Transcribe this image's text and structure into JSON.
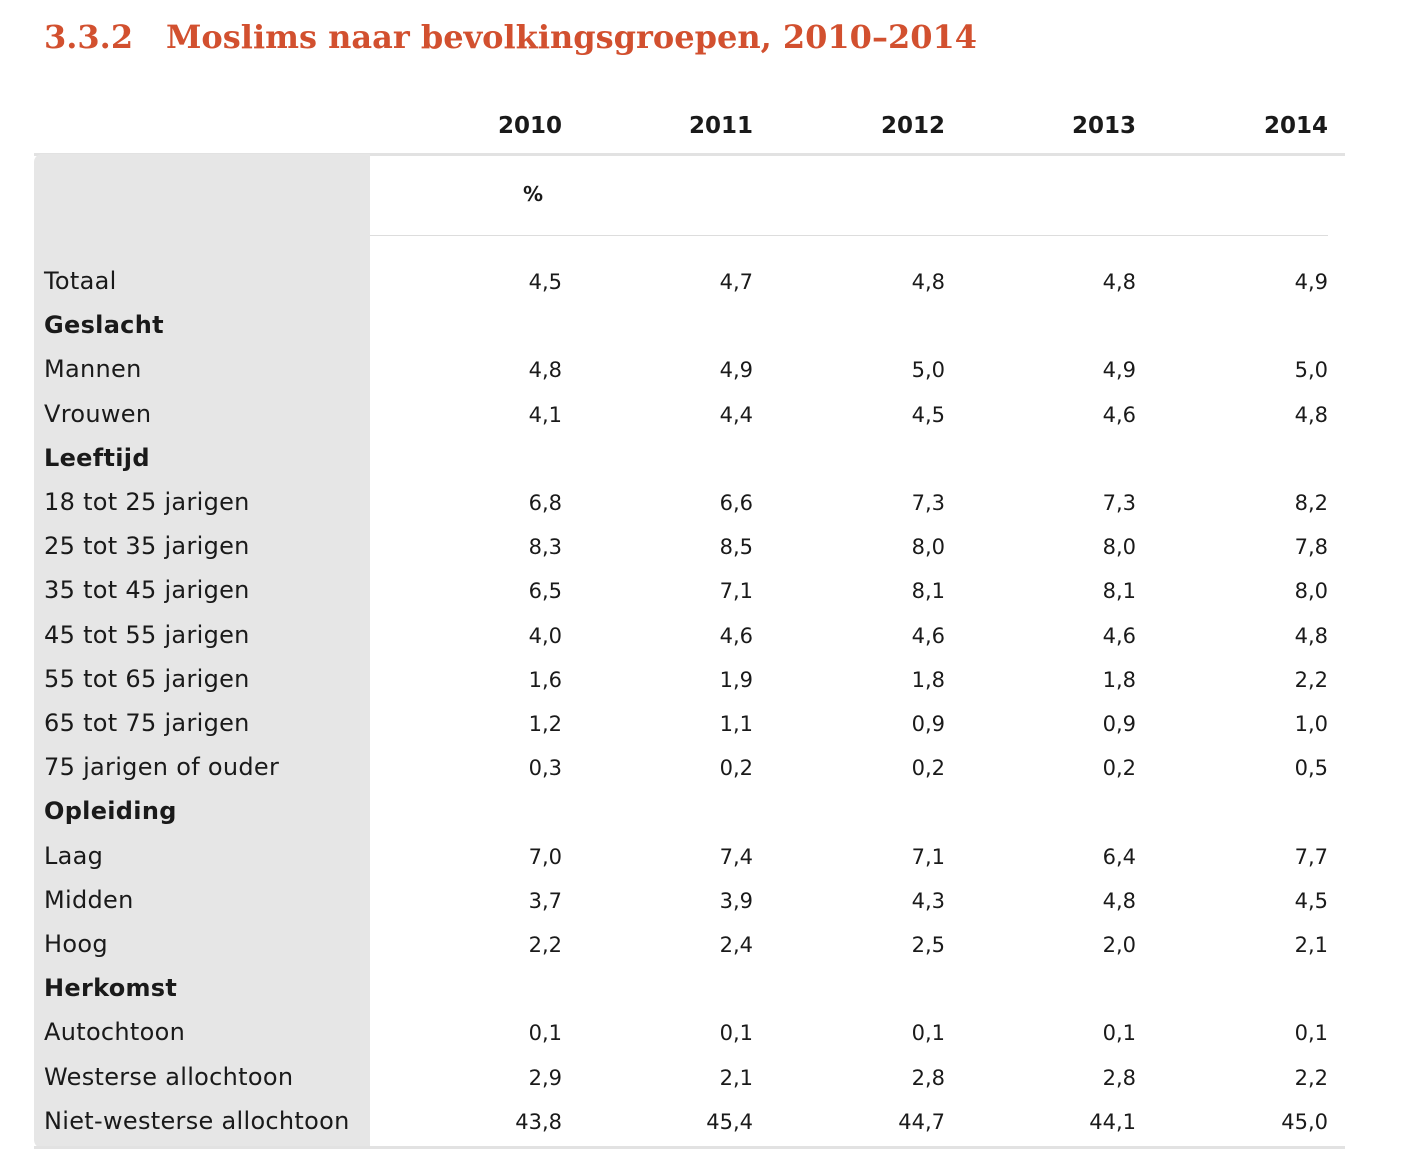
{
  "title": {
    "number": "3.3.2",
    "text": "Moslims naar bevolkingsgroepen, 2010–2014"
  },
  "columns": [
    "2010",
    "2011",
    "2012",
    "2013",
    "2014"
  ],
  "unit": "%",
  "rows": [
    {
      "label": "Totaal",
      "values": [
        "4,5",
        "4,7",
        "4,8",
        "4,8",
        "4,9"
      ]
    },
    {
      "label": "Geslacht",
      "section": true
    },
    {
      "label": "Mannen",
      "values": [
        "4,8",
        "4,9",
        "5,0",
        "4,9",
        "5,0"
      ]
    },
    {
      "label": "Vrouwen",
      "values": [
        "4,1",
        "4,4",
        "4,5",
        "4,6",
        "4,8"
      ]
    },
    {
      "label": "Leeftijd",
      "section": true
    },
    {
      "label": "18 tot 25 jarigen",
      "values": [
        "6,8",
        "6,6",
        "7,3",
        "7,3",
        "8,2"
      ]
    },
    {
      "label": "25 tot 35 jarigen",
      "values": [
        "8,3",
        "8,5",
        "8,0",
        "8,0",
        "7,8"
      ]
    },
    {
      "label": "35 tot 45 jarigen",
      "values": [
        "6,5",
        "7,1",
        "8,1",
        "8,1",
        "8,0"
      ]
    },
    {
      "label": "45 tot 55 jarigen",
      "values": [
        "4,0",
        "4,6",
        "4,6",
        "4,6",
        "4,8"
      ]
    },
    {
      "label": "55 tot 65 jarigen",
      "values": [
        "1,6",
        "1,9",
        "1,8",
        "1,8",
        "2,2"
      ]
    },
    {
      "label": "65 tot 75 jarigen",
      "values": [
        "1,2",
        "1,1",
        "0,9",
        "0,9",
        "1,0"
      ]
    },
    {
      "label": "75 jarigen of ouder",
      "values": [
        "0,3",
        "0,2",
        "0,2",
        "0,2",
        "0,5"
      ]
    },
    {
      "label": "Opleiding",
      "section": true
    },
    {
      "label": "Laag",
      "values": [
        "7,0",
        "7,4",
        "7,1",
        "6,4",
        "7,7"
      ]
    },
    {
      "label": "Midden",
      "values": [
        "3,7",
        "3,9",
        "4,3",
        "4,8",
        "4,5"
      ]
    },
    {
      "label": "Hoog",
      "values": [
        "2,2",
        "2,4",
        "2,5",
        "2,0",
        "2,1"
      ]
    },
    {
      "label": "Herkomst",
      "section": true
    },
    {
      "label": "Autochtoon",
      "values": [
        "0,1",
        "0,1",
        "0,1",
        "0,1",
        "0,1"
      ]
    },
    {
      "label": "Westerse allochtoon",
      "values": [
        "2,9",
        "2,1",
        "2,8",
        "2,8",
        "2,2"
      ]
    },
    {
      "label": "Niet-westerse allochtoon",
      "values": [
        "43,8",
        "45,4",
        "44,7",
        "44,1",
        "45,0"
      ]
    }
  ],
  "colors": {
    "title": "#d2502f",
    "label_panel": "#e6e6e6",
    "text": "#1a1a1a"
  }
}
